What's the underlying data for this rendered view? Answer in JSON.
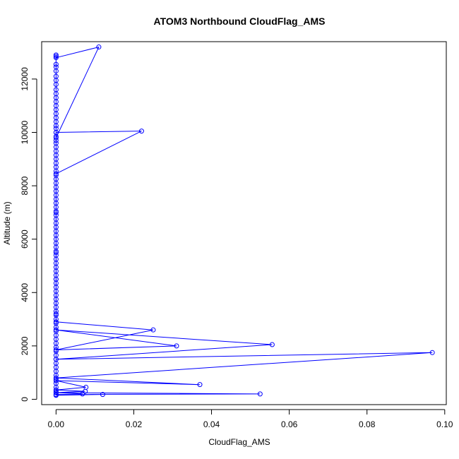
{
  "chart_data": {
    "type": "scatter",
    "title": "ATOM3 Northbound CloudFlag_AMS",
    "xlabel": "CloudFlag_AMS",
    "ylabel": "Altitude (m)",
    "xlim": [
      -0.0037,
      0.1004
    ],
    "ylim": [
      -200,
      13400
    ],
    "xticks": [
      "0.00",
      "0.02",
      "0.04",
      "0.06",
      "0.08",
      "0.10"
    ],
    "xtick_values": [
      0,
      0.02,
      0.04,
      0.06,
      0.08,
      0.1
    ],
    "yticks": [
      "0",
      "2000",
      "4000",
      "6000",
      "8000",
      "10000",
      "12000"
    ],
    "ytick_values": [
      0,
      2000,
      4000,
      6000,
      8000,
      10000,
      12000
    ],
    "grid": false,
    "legend": "none",
    "color": "#0000ff",
    "series": [
      {
        "x": [
          0.0,
          0.011,
          0.0,
          0.0,
          0.022,
          0.0,
          0.0,
          0.0,
          0.0,
          0.0,
          0.0,
          0.025,
          0.0,
          0.031,
          0.0,
          0.0556,
          0.0,
          0.0968,
          0.0,
          0.037,
          0.0,
          0.0077,
          0.0,
          0.0075,
          0.0,
          0.0068,
          0.0,
          0.0525,
          0.0,
          0.012,
          0.0
        ],
        "y": [
          12800,
          13200,
          9800,
          10000,
          10050,
          8450,
          7000,
          5500,
          4500,
          3200,
          2900,
          2600,
          1850,
          2000,
          2600,
          2050,
          1500,
          1750,
          800,
          550,
          700,
          450,
          350,
          300,
          250,
          200,
          250,
          200,
          180,
          180,
          150
        ]
      }
    ],
    "zero_column": [
      12900,
      12850,
      12550,
      12450,
      12300,
      12100,
      11950,
      11800,
      11600,
      11450,
      11300,
      11150,
      11000,
      10850,
      10700,
      10550,
      10400,
      10250,
      10150,
      10000,
      9850,
      9700,
      9600,
      9450,
      9300,
      9150,
      9000,
      8850,
      8700,
      8550,
      8400,
      8250,
      8100,
      7950,
      7800,
      7650,
      7500,
      7350,
      7200,
      7050,
      6900,
      6750,
      6600,
      6450,
      6300,
      6150,
      6000,
      5850,
      5700,
      5550,
      5400,
      5250,
      5100,
      4950,
      4800,
      4650,
      4500,
      4350,
      4200,
      4050,
      3900,
      3750,
      3600,
      3450,
      3300,
      3150,
      3000,
      2850,
      2700,
      2550,
      2400,
      2250,
      2100,
      1950,
      1800,
      1650,
      1500,
      1350,
      1200,
      1050,
      900,
      750,
      600,
      450,
      300,
      150
    ]
  }
}
